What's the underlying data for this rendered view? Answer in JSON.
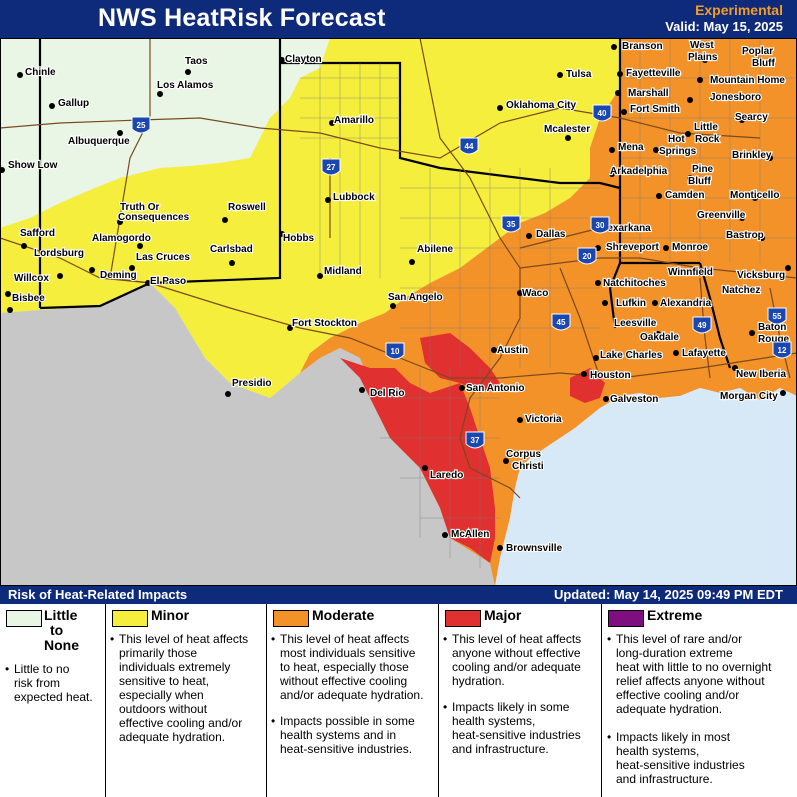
{
  "header": {
    "title": "NWS HeatRisk Forecast",
    "experimental": "Experimental",
    "valid": "Valid: May 15, 2025"
  },
  "colors": {
    "header_bg": "#0e2a7a",
    "little": "#e9f6e6",
    "minor": "#f5ee3c",
    "moderate": "#f39229",
    "major": "#e03030",
    "extreme": "#7d0f80",
    "mexico": "#c7c7c7",
    "water": "#d7e8f7"
  },
  "cities": [
    {
      "name": "Taos"
    },
    {
      "name": "Chinle"
    },
    {
      "name": "Los Alamos"
    },
    {
      "name": "Gallup"
    },
    {
      "name": "Albuquerque"
    },
    {
      "name": "Show Low"
    },
    {
      "name": "Truth Or"
    },
    {
      "name": "Consequences"
    },
    {
      "name": "Roswell"
    },
    {
      "name": "Alamogordo"
    },
    {
      "name": "Safford"
    },
    {
      "name": "Lordsburg"
    },
    {
      "name": "Las Cruces"
    },
    {
      "name": "Carlsbad"
    },
    {
      "name": "Hobbs"
    },
    {
      "name": "Willcox"
    },
    {
      "name": "Deming"
    },
    {
      "name": "El Paso"
    },
    {
      "name": "Bisbee"
    },
    {
      "name": "Clayton"
    },
    {
      "name": "Amarillo"
    },
    {
      "name": "Lubbock"
    },
    {
      "name": "Midland"
    },
    {
      "name": "Abilene"
    },
    {
      "name": "San Angelo"
    },
    {
      "name": "Fort Stockton"
    },
    {
      "name": "Presidio"
    },
    {
      "name": "Del Rio"
    },
    {
      "name": "San Antonio"
    },
    {
      "name": "Austin"
    },
    {
      "name": "Waco"
    },
    {
      "name": "Dallas"
    },
    {
      "name": "Laredo"
    },
    {
      "name": "Corpus"
    },
    {
      "name": "Christi"
    },
    {
      "name": "Victoria"
    },
    {
      "name": "Houston"
    },
    {
      "name": "Galveston"
    },
    {
      "name": "McAllen"
    },
    {
      "name": "Brownsville"
    },
    {
      "name": "Tulsa"
    },
    {
      "name": "Oklahoma City"
    },
    {
      "name": "Mcalester"
    },
    {
      "name": "Branson"
    },
    {
      "name": "West"
    },
    {
      "name": "Plains"
    },
    {
      "name": "Poplar"
    },
    {
      "name": "Bluff"
    },
    {
      "name": "Fayetteville"
    },
    {
      "name": "Mountain Home"
    },
    {
      "name": "Marshall"
    },
    {
      "name": "Jonesboro"
    },
    {
      "name": "Fort Smith"
    },
    {
      "name": "Searcy"
    },
    {
      "name": "Little"
    },
    {
      "name": "Rock"
    },
    {
      "name": "Hot"
    },
    {
      "name": "Springs"
    },
    {
      "name": "Mena"
    },
    {
      "name": "Brinkley"
    },
    {
      "name": "Arkadelphia"
    },
    {
      "name": "Pine"
    },
    {
      "name": "Bluff"
    },
    {
      "name": "Camden"
    },
    {
      "name": "Monticello"
    },
    {
      "name": "Texarkana"
    },
    {
      "name": "Greenville"
    },
    {
      "name": "Bastrop"
    },
    {
      "name": "Shreveport"
    },
    {
      "name": "Monroe"
    },
    {
      "name": "Winnfield"
    },
    {
      "name": "Vicksburg"
    },
    {
      "name": "Natchitoches"
    },
    {
      "name": "Natchez"
    },
    {
      "name": "Alexandria"
    },
    {
      "name": "Lufkin"
    },
    {
      "name": "Leesville"
    },
    {
      "name": "Oakdale"
    },
    {
      "name": "Baton"
    },
    {
      "name": "Rouge"
    },
    {
      "name": "Lake Charles"
    },
    {
      "name": "Lafayette"
    },
    {
      "name": "New Iberia"
    },
    {
      "name": "Morgan City"
    }
  ],
  "interstates": [
    "25",
    "40",
    "44",
    "27",
    "35",
    "30",
    "20",
    "10",
    "45",
    "49",
    "55",
    "12",
    "37"
  ],
  "risk_bar": {
    "title": "Risk of Heat-Related Impacts",
    "updated": "Updated: May 14, 2025 09:49 PM EDT"
  },
  "legend": [
    {
      "name_lines": [
        "Little",
        "to",
        "None"
      ],
      "bullets": [
        [
          "Little to no",
          "risk from",
          "expected heat."
        ]
      ]
    },
    {
      "name_lines": [
        "Minor"
      ],
      "bullets": [
        [
          "This level of heat affects",
          "primarily those",
          "individuals extremely",
          "sensitive to heat,",
          "especially when",
          "outdoors without",
          "effective cooling and/or",
          "adequate hydration."
        ]
      ]
    },
    {
      "name_lines": [
        "Moderate"
      ],
      "bullets": [
        [
          "This level of heat affects",
          "most individuals sensitive",
          "to heat, especially those",
          "without effective cooling",
          "and/or adequate hydration."
        ],
        [
          "Impacts possible in some",
          "health systems and in",
          "heat-sensitive industries."
        ]
      ]
    },
    {
      "name_lines": [
        "Major"
      ],
      "bullets": [
        [
          "This level of heat affects",
          "anyone without effective",
          "cooling and/or adequate",
          "hydration."
        ],
        [
          "Impacts likely in some",
          "health systems,",
          "heat-sensitive industries",
          "and infrastructure."
        ]
      ]
    },
    {
      "name_lines": [
        "Extreme"
      ],
      "bullets": [
        [
          "This level of rare and/or",
          "long-duration extreme",
          "heat with little to no overnight",
          "relief affects anyone without",
          "effective cooling and/or",
          "adequate hydration."
        ],
        [
          "Impacts likely in most",
          "health systems,",
          "heat-sensitive industries",
          "and infrastructure."
        ]
      ]
    }
  ]
}
